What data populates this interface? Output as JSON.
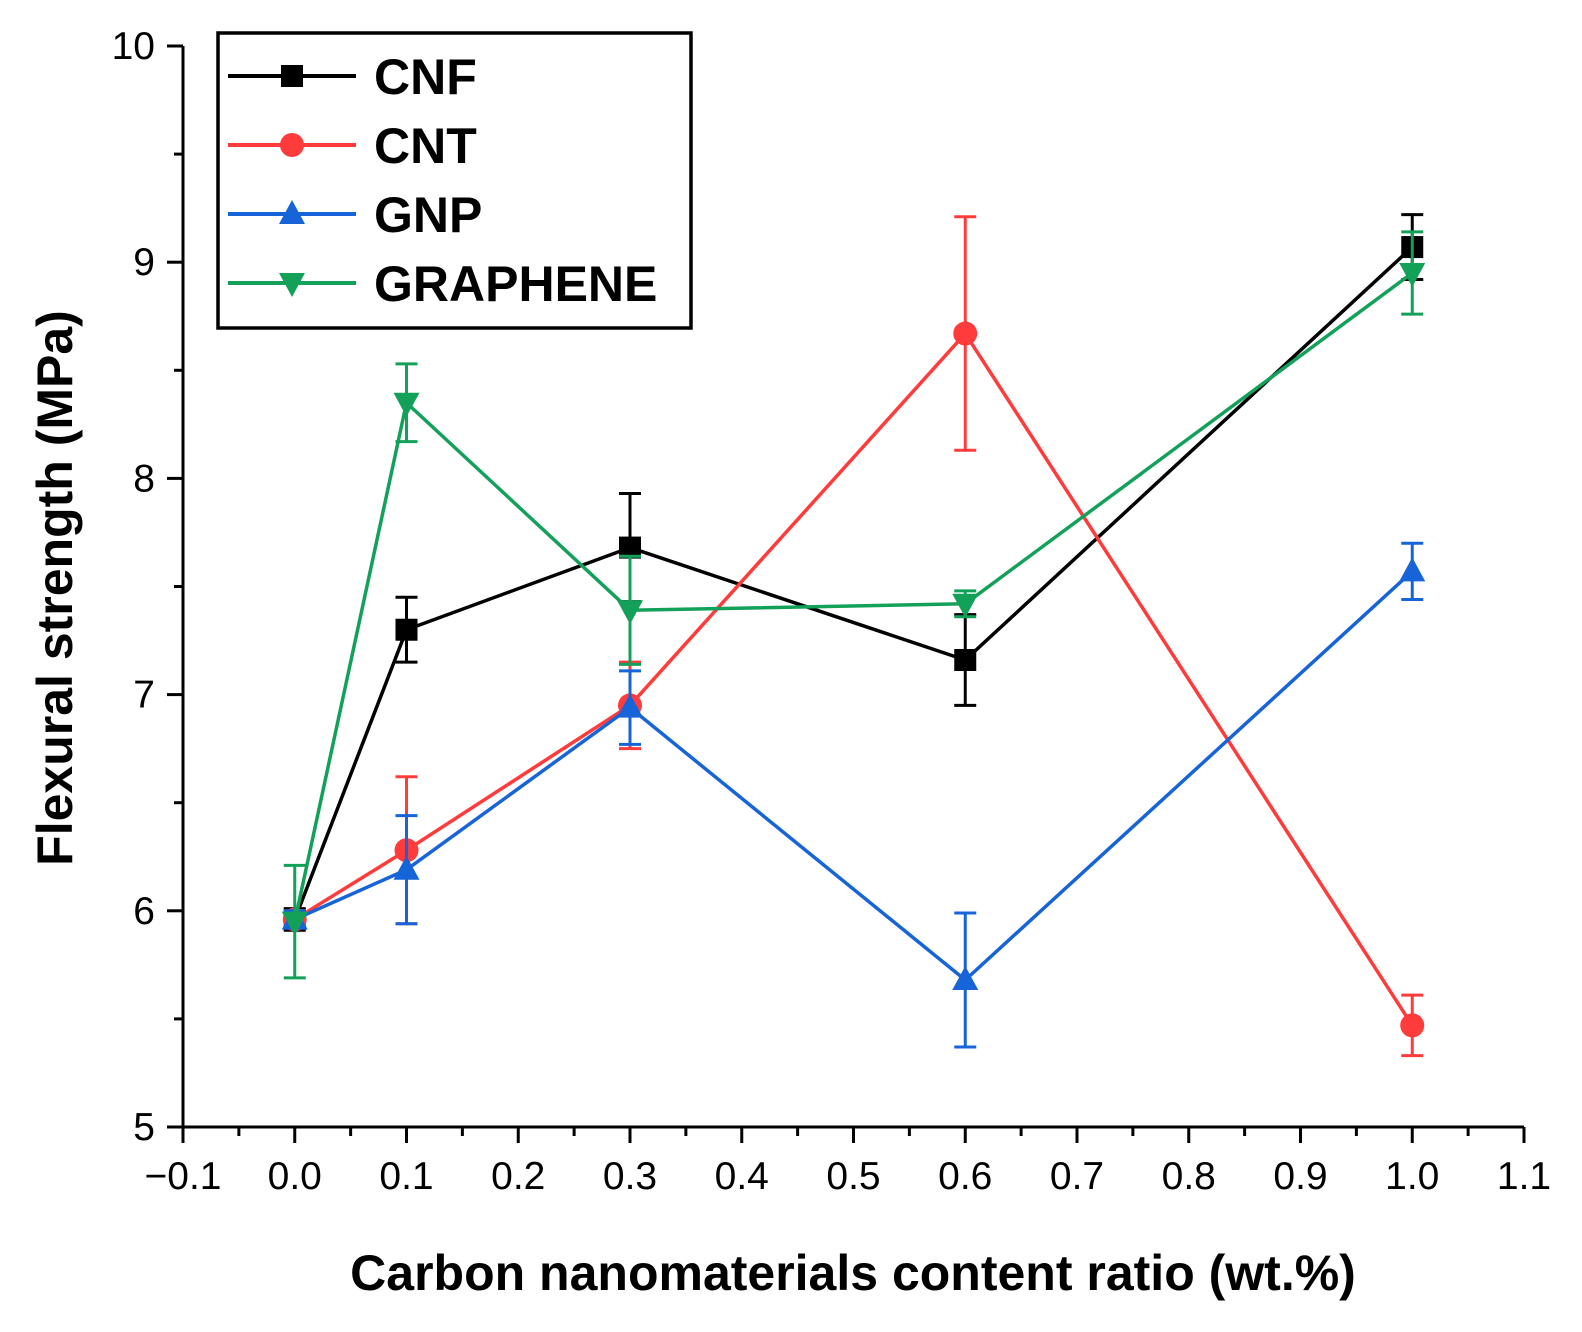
{
  "chart_data": {
    "type": "line",
    "title": "",
    "xlabel": "Carbon nanomaterials content ratio (wt.%)",
    "ylabel": "Flexural strength (MPa)",
    "xlim": [
      -0.1,
      1.1
    ],
    "ylim": [
      5,
      10
    ],
    "x_ticks": [
      -0.1,
      0.0,
      0.1,
      0.2,
      0.3,
      0.4,
      0.5,
      0.6,
      0.7,
      0.8,
      0.9,
      1.0,
      1.1
    ],
    "x_tick_labels": [
      "−0.1",
      "0.0",
      "0.1",
      "0.2",
      "0.3",
      "0.4",
      "0.5",
      "0.6",
      "0.7",
      "0.8",
      "0.9",
      "1.0",
      "1.1"
    ],
    "y_ticks": [
      5,
      6,
      7,
      8,
      9,
      10
    ],
    "y_tick_labels": [
      "5",
      "6",
      "7",
      "8",
      "9",
      "10"
    ],
    "grid": false,
    "legend_position": "top-left",
    "x": [
      0.0,
      0.1,
      0.3,
      0.6,
      1.0
    ],
    "series": [
      {
        "name": "CNF",
        "color": "#000000",
        "marker": "square",
        "values": [
          5.96,
          7.3,
          7.68,
          7.16,
          9.07
        ],
        "errors": [
          0.05,
          0.15,
          0.25,
          0.21,
          0.15
        ]
      },
      {
        "name": "CNT",
        "color": "#ff3b3b",
        "marker": "circle",
        "values": [
          5.96,
          6.28,
          6.95,
          8.67,
          5.47
        ],
        "errors": [
          0.04,
          0.34,
          0.2,
          0.54,
          0.14
        ]
      },
      {
        "name": "GNP",
        "color": "#1764d8",
        "marker": "triangle-up",
        "values": [
          5.96,
          6.19,
          6.94,
          5.68,
          7.57
        ],
        "errors": [
          0.04,
          0.25,
          0.17,
          0.31,
          0.13
        ]
      },
      {
        "name": "GRAPHENE",
        "color": "#13a15a",
        "marker": "triangle-down",
        "values": [
          5.95,
          8.35,
          7.39,
          7.42,
          8.95
        ],
        "errors": [
          0.26,
          0.18,
          0.25,
          0.06,
          0.19
        ]
      }
    ]
  }
}
